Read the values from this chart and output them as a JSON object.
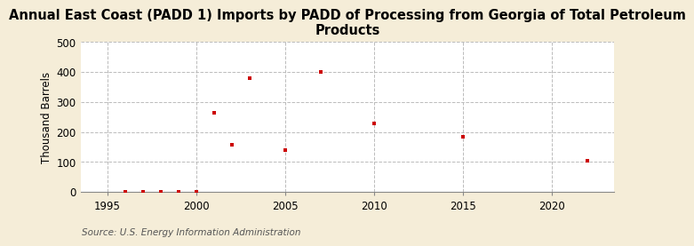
{
  "title": "Annual East Coast (PADD 1) Imports by PADD of Processing from Georgia of Total Petroleum\nProducts",
  "ylabel": "Thousand Barrels",
  "source": "Source: U.S. Energy Information Administration",
  "outer_background_color": "#f5edd8",
  "plot_background_color": "#ffffff",
  "point_color": "#cc0000",
  "marker": "s",
  "marker_size": 3.5,
  "xlim": [
    1993.5,
    2023.5
  ],
  "ylim": [
    0,
    500
  ],
  "xticks": [
    1995,
    2000,
    2005,
    2010,
    2015,
    2020
  ],
  "yticks": [
    0,
    100,
    200,
    300,
    400,
    500
  ],
  "x": [
    1996,
    1997,
    1998,
    1999,
    2000,
    2001,
    2002,
    2003,
    2005,
    2007,
    2010,
    2015,
    2022
  ],
  "y": [
    2,
    2,
    2,
    2,
    2,
    263,
    157,
    380,
    140,
    402,
    230,
    183,
    103
  ],
  "grid_color": "#bbbbbb",
  "grid_style": "--",
  "title_fontsize": 10.5,
  "label_fontsize": 8.5,
  "tick_fontsize": 8.5,
  "source_fontsize": 7.5
}
